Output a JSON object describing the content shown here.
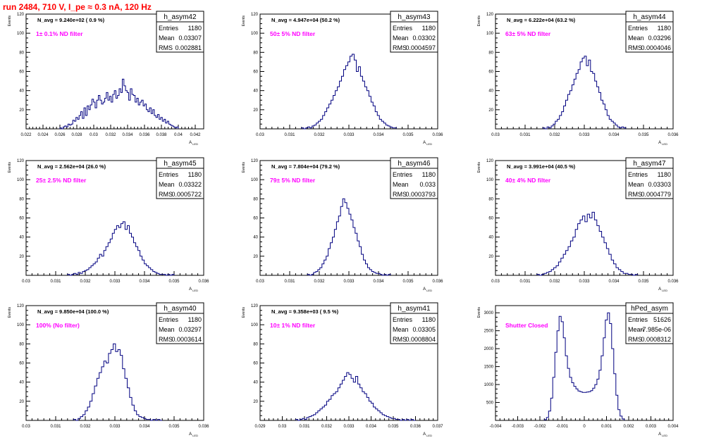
{
  "page": {
    "title": "run 2484,   710 V, I_pe ≈ 0.3 nA, 120 Hz"
  },
  "stats_labels": {
    "entries": "Entries",
    "mean": "Mean",
    "rms": "RMS"
  },
  "colors": {
    "histogram": "#000080",
    "annotation": "#ff00ff",
    "title": "#ff0000",
    "axes": "#000000"
  },
  "chart_data": [
    {
      "type": "histogram",
      "name": "h_asym42",
      "navg": "N_avg = 9.240e+02 ( 0.9 %)",
      "annotation": "1± 0.1% ND filter",
      "entries": "1180",
      "mean": "0.03307",
      "rms": "0.002881",
      "xlabel": "A_LED",
      "ylabel": "Events",
      "xlim": [
        0.022,
        0.043
      ],
      "ylim": [
        0,
        120
      ],
      "xticks": [
        0.022,
        0.024,
        0.026,
        0.028,
        0.03,
        0.032,
        0.034,
        0.036,
        0.038,
        0.04,
        0.042
      ],
      "xticklabels": [
        "0.022",
        "0.024",
        "0.026",
        "0.028",
        "0.03",
        "0.032",
        "0.034",
        "0.036",
        "0.038",
        "0.04",
        "0.042"
      ],
      "yticks": [
        0,
        20,
        40,
        60,
        80,
        100,
        120
      ],
      "yticklabels": [
        "",
        "20",
        "40",
        "60",
        "80",
        "100",
        "120"
      ],
      "bin_range": [
        0.026,
        0.04
      ],
      "values": [
        1,
        0,
        2,
        3,
        2,
        5,
        4,
        5,
        9,
        8,
        12,
        10,
        14,
        18,
        11,
        22,
        14,
        24,
        20,
        25,
        31,
        28,
        22,
        30,
        35,
        30,
        26,
        28,
        32,
        38,
        30,
        34,
        28,
        36,
        40,
        32,
        35,
        42,
        38,
        52,
        45,
        40,
        38,
        30,
        42,
        36,
        35,
        28,
        32,
        25,
        28,
        30,
        24,
        26,
        20,
        18,
        22,
        16,
        20,
        14,
        12,
        15,
        10,
        12,
        8,
        10,
        6,
        8,
        5,
        4,
        3,
        2,
        1,
        2
      ]
    },
    {
      "type": "histogram",
      "name": "h_asym43",
      "navg": "N_avg = 4.947e+04 (50.2 %)",
      "annotation": "50± 5% ND filter",
      "entries": "1180",
      "mean": "0.03302",
      "rms": "0.0004597",
      "xlabel": "A_LED",
      "ylabel": "Events",
      "xlim": [
        0.03,
        0.036
      ],
      "ylim": [
        0,
        120
      ],
      "xticks": [
        0.03,
        0.031,
        0.032,
        0.033,
        0.034,
        0.035,
        0.036
      ],
      "xticklabels": [
        "0.03",
        "0.031",
        "0.032",
        "0.033",
        "0.034",
        "0.035",
        "0.036"
      ],
      "yticks": [
        0,
        20,
        40,
        60,
        80,
        100,
        120
      ],
      "yticklabels": [
        "",
        "20",
        "40",
        "60",
        "80",
        "100",
        "120"
      ],
      "bin_range": [
        0.0314,
        0.0346
      ],
      "values": [
        1,
        0,
        1,
        2,
        1,
        3,
        4,
        6,
        8,
        10,
        14,
        18,
        22,
        26,
        30,
        35,
        40,
        44,
        50,
        55,
        62,
        66,
        70,
        76,
        78,
        72,
        60,
        65,
        55,
        50,
        44,
        40,
        34,
        28,
        24,
        18,
        14,
        10,
        8,
        6,
        4,
        3,
        2,
        1,
        1
      ]
    },
    {
      "type": "histogram",
      "name": "h_asym44",
      "navg": "N_avg = 6.222e+04 (63.2 %)",
      "annotation": "63± 5% ND filter",
      "entries": "1180",
      "mean": "0.03296",
      "rms": "0.0004046",
      "xlabel": "A_LED",
      "ylabel": "Events",
      "xlim": [
        0.03,
        0.036
      ],
      "ylim": [
        0,
        120
      ],
      "xticks": [
        0.03,
        0.031,
        0.032,
        0.033,
        0.034,
        0.035,
        0.036
      ],
      "xticklabels": [
        "0.03",
        "0.031",
        "0.032",
        "0.033",
        "0.034",
        "0.035",
        "0.036"
      ],
      "yticks": [
        0,
        20,
        40,
        60,
        80,
        100,
        120
      ],
      "yticklabels": [
        "",
        "20",
        "40",
        "60",
        "80",
        "100",
        "120"
      ],
      "bin_range": [
        0.0316,
        0.0344
      ],
      "values": [
        1,
        0,
        2,
        1,
        3,
        5,
        8,
        10,
        14,
        18,
        24,
        30,
        36,
        40,
        46,
        52,
        58,
        62,
        70,
        74,
        76,
        66,
        72,
        60,
        58,
        50,
        44,
        38,
        30,
        26,
        20,
        14,
        10,
        8,
        6,
        4,
        2,
        1,
        2,
        1
      ]
    },
    {
      "type": "histogram",
      "name": "h_asym45",
      "navg": "N_avg = 2.562e+04 (26.0 %)",
      "annotation": "25± 2.5% ND filter",
      "entries": "1180",
      "mean": "0.03322",
      "rms": "0.0005722",
      "xlabel": "A_LED",
      "ylabel": "Events",
      "xlim": [
        0.03,
        0.036
      ],
      "ylim": [
        0,
        120
      ],
      "xticks": [
        0.03,
        0.031,
        0.032,
        0.033,
        0.034,
        0.035,
        0.036
      ],
      "xticklabels": [
        "0.03",
        "0.031",
        "0.032",
        "0.033",
        "0.034",
        "0.035",
        "0.036"
      ],
      "yticks": [
        0,
        20,
        40,
        60,
        80,
        100,
        120
      ],
      "yticklabels": [
        "",
        "20",
        "40",
        "60",
        "80",
        "100",
        "120"
      ],
      "bin_range": [
        0.0314,
        0.035
      ],
      "values": [
        1,
        0,
        1,
        2,
        1,
        3,
        2,
        4,
        5,
        6,
        8,
        10,
        12,
        14,
        18,
        22,
        20,
        26,
        30,
        34,
        38,
        44,
        48,
        52,
        50,
        54,
        56,
        48,
        52,
        44,
        40,
        34,
        30,
        26,
        20,
        16,
        12,
        10,
        8,
        6,
        4,
        3,
        2,
        1,
        1,
        1,
        0,
        1,
        0,
        1
      ]
    },
    {
      "type": "histogram",
      "name": "h_asym46",
      "navg": "N_avg = 7.804e+04 (79.2 %)",
      "annotation": "79± 5% ND filter",
      "entries": "1180",
      "mean": "0.033",
      "rms": "0.0003793",
      "xlabel": "A_LED",
      "ylabel": "Events",
      "xlim": [
        0.03,
        0.036
      ],
      "ylim": [
        0,
        120
      ],
      "xticks": [
        0.03,
        0.031,
        0.032,
        0.033,
        0.034,
        0.035,
        0.036
      ],
      "xticklabels": [
        "0.03",
        "0.031",
        "0.032",
        "0.033",
        "0.034",
        "0.035",
        "0.036"
      ],
      "yticks": [
        0,
        20,
        40,
        60,
        80,
        100,
        120
      ],
      "yticklabels": [
        "",
        "20",
        "40",
        "60",
        "80",
        "100",
        "120"
      ],
      "bin_range": [
        0.0316,
        0.0344
      ],
      "values": [
        1,
        0,
        1,
        3,
        4,
        6,
        8,
        12,
        16,
        20,
        28,
        34,
        40,
        48,
        56,
        62,
        72,
        80,
        76,
        70,
        64,
        58,
        50,
        44,
        36,
        30,
        22,
        16,
        12,
        8,
        6,
        4,
        3,
        2,
        2,
        1,
        0,
        1,
        0,
        1
      ]
    },
    {
      "type": "histogram",
      "name": "h_asym47",
      "navg": "N_avg = 3.991e+04 (40.5 %)",
      "annotation": "40± 4% ND filter",
      "entries": "1180",
      "mean": "0.03303",
      "rms": "0.0004779",
      "xlabel": "A_LED",
      "ylabel": "Events",
      "xlim": [
        0.03,
        0.036
      ],
      "ylim": [
        0,
        120
      ],
      "xticks": [
        0.03,
        0.031,
        0.032,
        0.033,
        0.034,
        0.035,
        0.036
      ],
      "xticklabels": [
        "0.03",
        "0.031",
        "0.032",
        "0.033",
        "0.034",
        "0.035",
        "0.036"
      ],
      "yticks": [
        0,
        20,
        40,
        60,
        80,
        100,
        120
      ],
      "yticklabels": [
        "",
        "20",
        "40",
        "60",
        "80",
        "100",
        "120"
      ],
      "bin_range": [
        0.0314,
        0.0348
      ],
      "values": [
        1,
        0,
        1,
        2,
        3,
        4,
        6,
        8,
        10,
        14,
        18,
        22,
        26,
        30,
        36,
        40,
        48,
        54,
        58,
        62,
        56,
        64,
        60,
        66,
        58,
        52,
        46,
        40,
        34,
        28,
        22,
        16,
        12,
        8,
        6,
        4,
        2,
        2,
        1,
        1,
        0,
        1
      ]
    },
    {
      "type": "histogram",
      "name": "h_asym40",
      "navg": "N_avg = 9.850e+04 (100.0 %)",
      "annotation": "100% (No filter)",
      "entries": "1180",
      "mean": "0.03297",
      "rms": "0.0003614",
      "xlabel": "A_LED",
      "ylabel": "Events",
      "xlim": [
        0.03,
        0.036
      ],
      "ylim": [
        0,
        120
      ],
      "xticks": [
        0.03,
        0.031,
        0.032,
        0.033,
        0.034,
        0.035,
        0.036
      ],
      "xticklabels": [
        "0.03",
        "0.031",
        "0.032",
        "0.033",
        "0.034",
        "0.035",
        "0.036"
      ],
      "yticks": [
        0,
        20,
        40,
        60,
        80,
        100,
        120
      ],
      "yticklabels": [
        "",
        "20",
        "40",
        "60",
        "80",
        "100",
        "120"
      ],
      "bin_range": [
        0.0316,
        0.0346
      ],
      "values": [
        1,
        0,
        2,
        4,
        6,
        10,
        14,
        20,
        28,
        36,
        44,
        50,
        56,
        62,
        60,
        70,
        74,
        80,
        72,
        74,
        68,
        54,
        44,
        34,
        24,
        16,
        10,
        6,
        4,
        3,
        2,
        1,
        1,
        0,
        1,
        0,
        1,
        0
      ]
    },
    {
      "type": "histogram",
      "name": "h_asym41",
      "navg": "N_avg = 9.358e+03 ( 9.5 %)",
      "annotation": "10± 1% ND filter",
      "entries": "1180",
      "mean": "0.03305",
      "rms": "0.0008804",
      "xlabel": "A_LED",
      "ylabel": "Events",
      "xlim": [
        0.029,
        0.037
      ],
      "ylim": [
        0,
        120
      ],
      "xticks": [
        0.029,
        0.03,
        0.031,
        0.032,
        0.033,
        0.034,
        0.035,
        0.036,
        0.037
      ],
      "xticklabels": [
        "0.029",
        "0.03",
        "0.031",
        "0.032",
        "0.033",
        "0.034",
        "0.035",
        "0.036",
        "0.037"
      ],
      "yticks": [
        0,
        20,
        40,
        60,
        80,
        100,
        120
      ],
      "yticklabels": [
        "",
        "20",
        "40",
        "60",
        "80",
        "100",
        "120"
      ],
      "bin_range": [
        0.0306,
        0.036
      ],
      "values": [
        1,
        0,
        1,
        2,
        1,
        3,
        4,
        5,
        6,
        8,
        10,
        12,
        14,
        16,
        20,
        22,
        26,
        28,
        30,
        34,
        38,
        42,
        46,
        50,
        48,
        44,
        40,
        46,
        38,
        34,
        30,
        28,
        24,
        20,
        18,
        14,
        12,
        10,
        8,
        6,
        5,
        4,
        3,
        2,
        2,
        1,
        1,
        0,
        1,
        0,
        1,
        0,
        1,
        0
      ]
    },
    {
      "type": "histogram",
      "name": "hPed_asym",
      "navg": "",
      "annotation": "Shutter Closed",
      "entries": "51626",
      "mean": "-7.985e-06",
      "rms": "0.0008312",
      "xlabel": "A_LED",
      "ylabel": "Events",
      "xlim": [
        -0.004,
        0.004
      ],
      "ylim": [
        0,
        3200
      ],
      "xticks": [
        -0.004,
        -0.003,
        -0.002,
        -0.001,
        0,
        0.001,
        0.002,
        0.003,
        0.004
      ],
      "xticklabels": [
        "-0.004",
        "-0.003",
        "-0.002",
        "-0.001",
        "0",
        "0.001",
        "0.002",
        "0.003",
        "0.004"
      ],
      "yticks": [
        0,
        500,
        1000,
        1500,
        2000,
        2500,
        3000
      ],
      "yticklabels": [
        "",
        "500",
        "1000",
        "1500",
        "2000",
        "2500",
        "3000"
      ],
      "bin_range": [
        -0.0018,
        0.0018
      ],
      "values": [
        20,
        80,
        260,
        620,
        1200,
        1900,
        2500,
        2900,
        2750,
        2300,
        1800,
        1450,
        1200,
        1050,
        950,
        880,
        820,
        800,
        780,
        780,
        790,
        800,
        830,
        900,
        1000,
        1150,
        1400,
        1800,
        2300,
        2800,
        3000,
        2700,
        2000,
        1300,
        700,
        300,
        120,
        40
      ]
    }
  ]
}
